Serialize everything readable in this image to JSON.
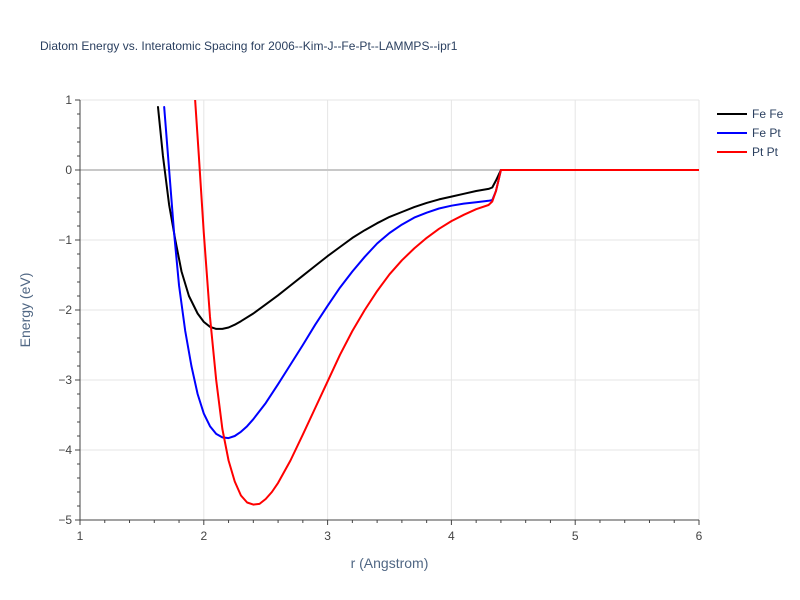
{
  "chart_data": {
    "type": "line",
    "title": "Diatom Energy vs. Interatomic Spacing for 2006--Kim-J--Fe-Pt--LAMMPS--ipr1",
    "xlabel": "r (Angstrom)",
    "ylabel": "Energy (eV)",
    "xlim": [
      1,
      6
    ],
    "ylim": [
      -5,
      1
    ],
    "xticks": [
      1,
      2,
      3,
      4,
      5,
      6
    ],
    "xtick_labels": [
      "1",
      "2",
      "3",
      "4",
      "5",
      "6"
    ],
    "yticks": [
      1,
      0,
      -1,
      -2,
      -3,
      -4,
      -5
    ],
    "ytick_labels": [
      "1",
      "0",
      "−1",
      "−2",
      "−3",
      "−4",
      "−5"
    ],
    "grid": true,
    "zero_line": true,
    "legend_position": "top-right",
    "series": [
      {
        "name": "Fe Fe",
        "color": "#000000",
        "x": [
          1.63,
          1.67,
          1.72,
          1.77,
          1.82,
          1.88,
          1.95,
          2.0,
          2.05,
          2.1,
          2.15,
          2.2,
          2.25,
          2.3,
          2.4,
          2.5,
          2.6,
          2.7,
          2.8,
          2.9,
          3.0,
          3.1,
          3.2,
          3.3,
          3.4,
          3.5,
          3.6,
          3.7,
          3.8,
          3.9,
          4.0,
          4.1,
          4.2,
          4.3,
          4.33,
          4.36,
          4.4,
          4.5,
          5.0,
          5.5,
          6.0
        ],
        "y": [
          0.9,
          0.2,
          -0.5,
          -1.0,
          -1.45,
          -1.8,
          -2.05,
          -2.17,
          -2.24,
          -2.27,
          -2.27,
          -2.25,
          -2.21,
          -2.16,
          -2.05,
          -1.92,
          -1.79,
          -1.65,
          -1.51,
          -1.37,
          -1.23,
          -1.1,
          -0.97,
          -0.86,
          -0.76,
          -0.67,
          -0.6,
          -0.53,
          -0.47,
          -0.42,
          -0.38,
          -0.34,
          -0.3,
          -0.27,
          -0.25,
          -0.15,
          0.0,
          0.0,
          0.0,
          0.0,
          0.0
        ]
      },
      {
        "name": "Fe Pt",
        "color": "#0000ff",
        "x": [
          1.68,
          1.72,
          1.76,
          1.8,
          1.85,
          1.9,
          1.95,
          2.0,
          2.05,
          2.1,
          2.15,
          2.2,
          2.25,
          2.3,
          2.35,
          2.4,
          2.5,
          2.6,
          2.7,
          2.8,
          2.9,
          3.0,
          3.1,
          3.2,
          3.3,
          3.4,
          3.5,
          3.6,
          3.7,
          3.8,
          3.9,
          4.0,
          4.1,
          4.2,
          4.3,
          4.33,
          4.36,
          4.4,
          4.5,
          5.0,
          5.5,
          6.0
        ],
        "y": [
          0.9,
          0.0,
          -0.9,
          -1.65,
          -2.3,
          -2.8,
          -3.2,
          -3.48,
          -3.66,
          -3.77,
          -3.82,
          -3.83,
          -3.8,
          -3.74,
          -3.66,
          -3.56,
          -3.33,
          -3.06,
          -2.78,
          -2.5,
          -2.21,
          -1.94,
          -1.68,
          -1.45,
          -1.24,
          -1.05,
          -0.9,
          -0.78,
          -0.68,
          -0.61,
          -0.55,
          -0.51,
          -0.48,
          -0.46,
          -0.44,
          -0.43,
          -0.3,
          0.0,
          0.0,
          0.0,
          0.0,
          0.0
        ]
      },
      {
        "name": "Pt Pt",
        "color": "#ff0000",
        "x": [
          1.93,
          1.96,
          2.0,
          2.05,
          2.1,
          2.15,
          2.2,
          2.25,
          2.3,
          2.35,
          2.4,
          2.45,
          2.5,
          2.55,
          2.6,
          2.7,
          2.8,
          2.9,
          3.0,
          3.1,
          3.2,
          3.3,
          3.4,
          3.5,
          3.6,
          3.7,
          3.8,
          3.9,
          4.0,
          4.1,
          4.2,
          4.3,
          4.33,
          4.36,
          4.4,
          4.5,
          5.0,
          5.5,
          6.0
        ],
        "y": [
          1.0,
          0.2,
          -0.9,
          -2.1,
          -3.0,
          -3.7,
          -4.15,
          -4.45,
          -4.65,
          -4.75,
          -4.78,
          -4.77,
          -4.7,
          -4.6,
          -4.47,
          -4.15,
          -3.78,
          -3.4,
          -3.02,
          -2.64,
          -2.3,
          -2.0,
          -1.73,
          -1.49,
          -1.29,
          -1.12,
          -0.97,
          -0.84,
          -0.73,
          -0.64,
          -0.56,
          -0.5,
          -0.45,
          -0.3,
          0.0,
          0.0,
          0.0,
          0.0,
          0.0
        ]
      }
    ]
  }
}
